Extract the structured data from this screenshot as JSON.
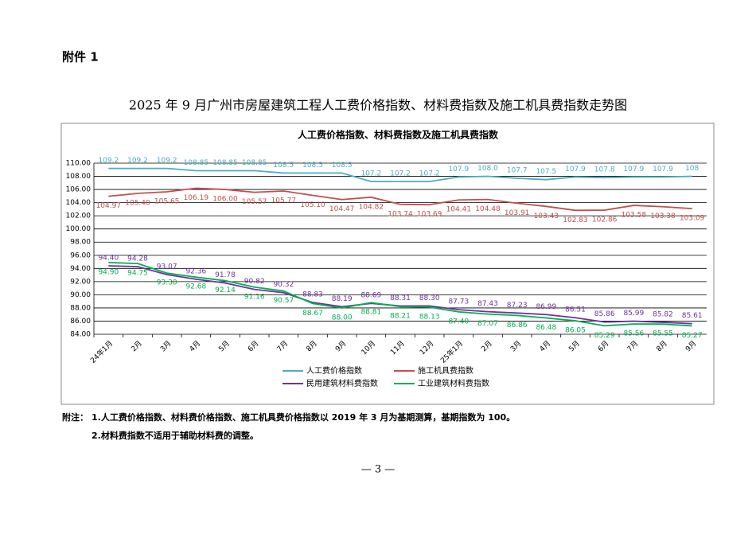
{
  "header": "附件 1",
  "doc_title": "2025 年 9 月广州市房屋建筑工程人工费价格指数、材料费指数及施工机具费指数走势图",
  "chart_data": {
    "type": "line",
    "title": "人工费价格指数、材料费指数及施工机具费指数",
    "categories": [
      "24年1月",
      "2月",
      "3月",
      "4月",
      "5月",
      "6月",
      "7月",
      "8月",
      "9月",
      "10月",
      "11月",
      "12月",
      "25年1月",
      "2月",
      "3月",
      "4月",
      "5月",
      "6月",
      "7月",
      "8月",
      "9月"
    ],
    "ylim": [
      84,
      110
    ],
    "yticks": [
      {
        "value": 84,
        "label": "84.00"
      },
      {
        "value": 86,
        "label": "86.00"
      },
      {
        "value": 88,
        "label": "88.00"
      },
      {
        "value": 90,
        "label": "90.00"
      },
      {
        "value": 92,
        "label": "92.00"
      },
      {
        "value": 94,
        "label": "94.00"
      },
      {
        "value": 96,
        "label": "96.00"
      },
      {
        "value": 98,
        "label": "98.00"
      },
      {
        "value": 100,
        "label": "100.00"
      },
      {
        "value": 102,
        "label": "102.00"
      },
      {
        "value": 104,
        "label": "104.00"
      },
      {
        "value": 106,
        "label": "106.00"
      },
      {
        "value": 108,
        "label": "108.00"
      },
      {
        "value": 110,
        "label": "110.00"
      }
    ],
    "grid": true,
    "series": [
      {
        "name": "人工费价格指数",
        "color": "#4bacc6",
        "values": [
          109.2,
          109.2,
          109.2,
          108.85,
          108.85,
          108.85,
          108.5,
          108.5,
          108.5,
          107.2,
          107.2,
          107.2,
          107.9,
          108.0,
          107.7,
          107.5,
          107.9,
          107.8,
          107.9,
          107.9,
          108
        ],
        "value_labels": [
          "109.2",
          "109.2",
          "109.2",
          "108.85",
          "108.85",
          "108.85",
          "108.5",
          "108.5",
          "108.5",
          "107.2",
          "107.2",
          "107.2",
          "107.9",
          "108.0",
          "107.7",
          "107.5",
          "107.9",
          "107.8",
          "107.9",
          "107.9",
          "108"
        ]
      },
      {
        "name": "施工机具费指数",
        "color": "#c0504d",
        "values": [
          104.97,
          105.4,
          105.65,
          106.19,
          106.0,
          105.57,
          105.77,
          105.1,
          104.47,
          104.82,
          103.74,
          103.69,
          104.41,
          104.48,
          103.91,
          103.43,
          102.83,
          102.86,
          103.58,
          103.38,
          103.09
        ],
        "value_labels": [
          "104.97",
          "105.40",
          "105.65",
          "106.19",
          "106.00",
          "105.57",
          "105.77",
          "105.10",
          "104.47",
          "104.82",
          "103.74",
          "103.69",
          "104.41",
          "104.48",
          "103.91",
          "103.43",
          "102.83",
          "102.86",
          "103.58",
          "103.38",
          "103.09"
        ]
      },
      {
        "name": "民用建筑材料费指数",
        "color": "#7030a0",
        "values": [
          94.4,
          94.28,
          93.07,
          92.36,
          91.78,
          90.82,
          90.32,
          88.83,
          88.19,
          88.69,
          88.31,
          88.3,
          87.73,
          87.43,
          87.23,
          86.99,
          86.51,
          85.86,
          85.99,
          85.82,
          85.61
        ],
        "value_labels": [
          "94.40",
          "94.28",
          "93.07",
          "92.36",
          "91.78",
          "90.82",
          "90.32",
          "88.83",
          "88.19",
          "88.69",
          "88.31",
          "88.30",
          "87.73",
          "87.43",
          "87.23",
          "86.99",
          "86.51",
          "85.86",
          "85.99",
          "85.82",
          "85.61"
        ]
      },
      {
        "name": "工业建筑材料费指数",
        "color": "#00b050",
        "values": [
          94.9,
          94.75,
          93.3,
          92.68,
          92.14,
          91.16,
          90.57,
          88.67,
          88.0,
          88.81,
          88.21,
          88.13,
          87.4,
          87.07,
          86.86,
          86.48,
          86.05,
          85.29,
          85.56,
          85.55,
          85.27
        ],
        "value_labels": [
          "94.90",
          "94.75",
          "93.30",
          "92.68",
          "92.14",
          "91.16",
          "90.57",
          "88.67",
          "88.00",
          "88.81",
          "88.21",
          "88.13",
          "87.40",
          "87.07",
          "86.86",
          "86.48",
          "86.05",
          "85.29",
          "85.56",
          "85.55",
          "85.27"
        ]
      }
    ]
  },
  "notes": {
    "label": "附注：",
    "items": [
      "1.人工费价格指数、材料费价格指数、施工机具费价格指数以 2019 年 3 月为基期测算，基期指数为 100。",
      "2.材料费指数不适用于辅助材料费的调整。"
    ]
  },
  "page_number": "— 3 —"
}
